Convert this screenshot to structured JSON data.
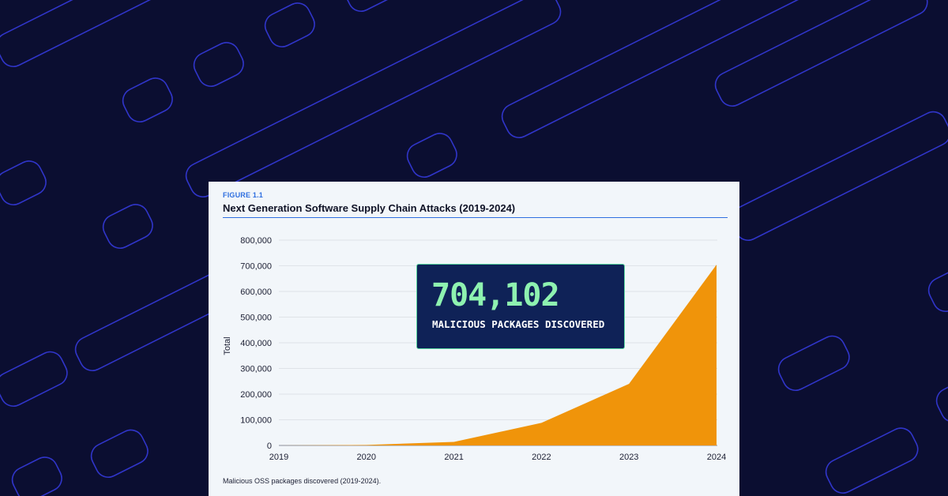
{
  "figure": {
    "label": "FIGURE 1.1",
    "title": "Next Generation Software Supply Chain Attacks (2019-2024)",
    "caption": "Malicious OSS packages discovered (2019-2024)."
  },
  "callout": {
    "value": "704,102",
    "caption": "MALICIOUS PACKAGES DISCOVERED"
  },
  "colors": {
    "background": "#0b0e31",
    "background_lines": "#3035c9",
    "area_fill": "#f0940a",
    "accent": "#2f6fe0",
    "callout_bg": "#0f2257",
    "callout_text": "#8ef2b0"
  },
  "chart_data": {
    "type": "area",
    "title": "Next Generation Software Supply Chain Attacks (2019-2024)",
    "ylabel": "Total",
    "xlabel": "",
    "x": [
      "2019",
      "2020",
      "2021",
      "2022",
      "2023",
      "2024"
    ],
    "series": [
      {
        "values": [
          0,
          2000,
          14000,
          88000,
          240000,
          704102
        ]
      }
    ],
    "ylim": [
      0,
      800000
    ],
    "yticks": [
      0,
      100000,
      200000,
      300000,
      400000,
      500000,
      600000,
      700000,
      800000
    ],
    "ytick_labels": [
      "0",
      "100,000",
      "200,000",
      "300,000",
      "400,000",
      "500,000",
      "600,000",
      "700,000",
      "800,000"
    ],
    "grid": true
  }
}
